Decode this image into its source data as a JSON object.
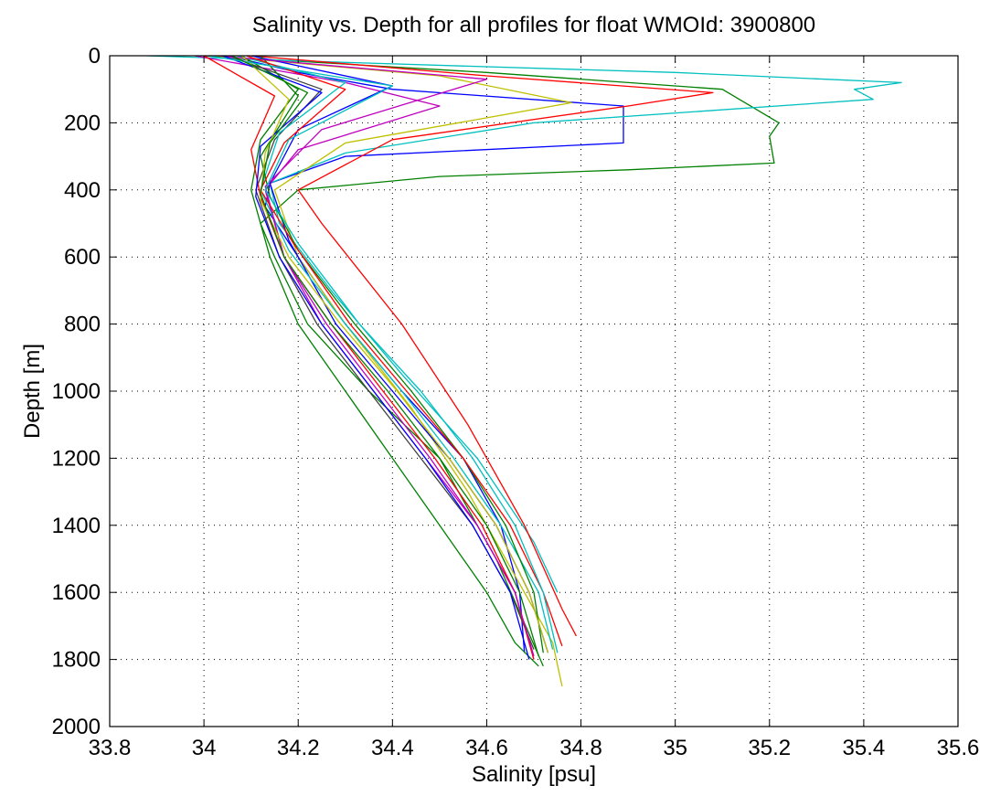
{
  "chart_data": {
    "type": "line",
    "title": "Salinity vs. Depth for all profiles for float WMOId: 3900800",
    "xlabel": "Salinity [psu]",
    "ylabel": "Depth [m]",
    "xlim": [
      33.8,
      35.6
    ],
    "ylim": [
      0,
      2000
    ],
    "y_reversed": true,
    "grid": true,
    "xticks": [
      33.8,
      34,
      34.2,
      34.4,
      34.6,
      34.8,
      35,
      35.2,
      35.4,
      35.6
    ],
    "xtick_labels": [
      "33.8",
      "34",
      "34.2",
      "34.4",
      "34.6",
      "34.8",
      "35",
      "35.2",
      "35.4",
      "35.6"
    ],
    "yticks": [
      0,
      200,
      400,
      600,
      800,
      1000,
      1200,
      1400,
      1600,
      1800,
      2000
    ],
    "ytick_labels": [
      "0",
      "200",
      "400",
      "600",
      "800",
      "1000",
      "1200",
      "1400",
      "1600",
      "1800",
      "2000"
    ],
    "series_colors": [
      "#0000ff",
      "#008000",
      "#ff0000",
      "#00bfbf",
      "#bf00bf",
      "#bfbf00",
      "#404040"
    ],
    "series": [
      {
        "color": "#0000ff",
        "x": [
          34.05,
          34.2,
          34.4,
          34.89,
          34.89,
          34.3,
          34.14,
          34.13,
          34.2,
          34.3,
          34.42,
          34.55,
          34.63,
          34.67,
          34.68
        ],
        "y": [
          0,
          50,
          100,
          150,
          260,
          300,
          380,
          450,
          600,
          800,
          1000,
          1200,
          1400,
          1600,
          1780
        ]
      },
      {
        "color": "#008000",
        "x": [
          34.0,
          34.6,
          35.1,
          35.22,
          35.2,
          35.21,
          34.9,
          34.5,
          34.2,
          34.12,
          34.15,
          34.22,
          34.35,
          34.5,
          34.62,
          34.72
        ],
        "y": [
          0,
          50,
          100,
          200,
          240,
          320,
          340,
          360,
          400,
          500,
          600,
          800,
          1000,
          1200,
          1500,
          1820
        ]
      },
      {
        "color": "#00bfbf",
        "x": [
          33.88,
          34.3,
          35.0,
          35.48,
          35.38,
          35.42,
          34.7,
          34.3,
          34.14,
          34.16,
          34.27,
          34.42,
          34.58,
          34.7,
          34.75
        ],
        "y": [
          0,
          20,
          50,
          80,
          100,
          130,
          200,
          290,
          380,
          500,
          700,
          950,
          1200,
          1450,
          1600
        ]
      },
      {
        "color": "#ff0000",
        "x": [
          34.1,
          34.6,
          35.08,
          34.9,
          34.4,
          34.2,
          34.25,
          34.42,
          34.56,
          34.68,
          34.76,
          34.79
        ],
        "y": [
          0,
          60,
          110,
          150,
          250,
          400,
          500,
          800,
          1100,
          1400,
          1650,
          1730
        ]
      },
      {
        "color": "#008000",
        "x": [
          34.08,
          34.2,
          34.12,
          34.1,
          34.14,
          34.2,
          34.3,
          34.4,
          34.5,
          34.6,
          34.66,
          34.71
        ],
        "y": [
          0,
          100,
          250,
          400,
          600,
          800,
          1000,
          1200,
          1400,
          1600,
          1750,
          1820
        ]
      },
      {
        "color": "#bf00bf",
        "x": [
          33.98,
          34.3,
          34.5,
          34.2,
          34.13,
          34.17,
          34.25,
          34.36,
          34.47,
          34.58,
          34.66,
          34.7
        ],
        "y": [
          0,
          80,
          150,
          280,
          400,
          600,
          800,
          1000,
          1200,
          1400,
          1600,
          1800
        ]
      },
      {
        "color": "#bfbf00",
        "x": [
          34.02,
          34.5,
          34.78,
          34.3,
          34.15,
          34.2,
          34.3,
          34.44,
          34.56,
          34.66,
          34.74,
          34.76
        ],
        "y": [
          0,
          60,
          140,
          260,
          400,
          600,
          800,
          1050,
          1300,
          1550,
          1750,
          1880
        ]
      },
      {
        "color": "#404040",
        "x": [
          34.05,
          34.25,
          34.15,
          34.11,
          34.16,
          34.24,
          34.35,
          34.46,
          34.57,
          34.65,
          34.7
        ],
        "y": [
          0,
          100,
          250,
          400,
          600,
          800,
          1000,
          1200,
          1400,
          1600,
          1770
        ]
      },
      {
        "color": "#0000ff",
        "x": [
          34.1,
          34.4,
          34.2,
          34.14,
          34.18,
          34.28,
          34.4,
          34.52,
          34.62,
          34.69,
          34.73
        ],
        "y": [
          0,
          90,
          220,
          380,
          550,
          800,
          1000,
          1200,
          1400,
          1600,
          1780
        ]
      },
      {
        "color": "#ff0000",
        "x": [
          34.0,
          34.15,
          34.1,
          34.12,
          34.17,
          34.27,
          34.38,
          34.49,
          34.59,
          34.66,
          34.7
        ],
        "y": [
          0,
          120,
          280,
          420,
          600,
          800,
          1000,
          1200,
          1400,
          1600,
          1800
        ]
      },
      {
        "color": "#00bfbf",
        "x": [
          34.07,
          34.3,
          34.16,
          34.12,
          34.18,
          34.3,
          34.42,
          34.53,
          34.63,
          34.71,
          34.74
        ],
        "y": [
          0,
          80,
          230,
          400,
          580,
          800,
          1000,
          1200,
          1400,
          1600,
          1770
        ]
      },
      {
        "color": "#008000",
        "x": [
          34.12,
          34.2,
          34.12,
          34.14,
          34.2,
          34.32,
          34.44,
          34.55,
          34.64,
          34.7,
          34.72
        ],
        "y": [
          0,
          120,
          300,
          420,
          580,
          800,
          1000,
          1200,
          1400,
          1600,
          1780
        ]
      },
      {
        "color": "#bf00bf",
        "x": [
          34.03,
          34.6,
          34.25,
          34.13,
          34.17,
          34.26,
          34.37,
          34.48,
          34.58,
          34.66,
          34.7
        ],
        "y": [
          0,
          70,
          220,
          390,
          600,
          800,
          1000,
          1200,
          1400,
          1600,
          1790
        ]
      },
      {
        "color": "#ff0000",
        "x": [
          34.09,
          34.3,
          34.17,
          34.12,
          34.19,
          34.31,
          34.43,
          34.55,
          34.65,
          34.72,
          34.76
        ],
        "y": [
          0,
          100,
          260,
          400,
          560,
          800,
          1000,
          1200,
          1400,
          1600,
          1760
        ]
      },
      {
        "color": "#0000ff",
        "x": [
          34.04,
          34.25,
          34.12,
          34.11,
          34.16,
          34.25,
          34.36,
          34.47,
          34.57,
          34.65,
          34.69
        ],
        "y": [
          0,
          110,
          270,
          420,
          600,
          800,
          1000,
          1200,
          1400,
          1600,
          1800
        ]
      },
      {
        "color": "#bfbf00",
        "x": [
          34.08,
          34.18,
          34.13,
          34.12,
          34.18,
          34.29,
          34.41,
          34.52,
          34.62,
          34.69,
          34.73
        ],
        "y": [
          0,
          130,
          290,
          430,
          600,
          800,
          1000,
          1200,
          1400,
          1600,
          1780
        ]
      },
      {
        "color": "#00bfbf",
        "x": [
          34.01,
          34.4,
          34.18,
          34.13,
          34.2,
          34.33,
          34.46,
          34.57,
          34.66,
          34.72,
          34.75
        ],
        "y": [
          0,
          90,
          250,
          400,
          560,
          800,
          1000,
          1200,
          1400,
          1600,
          1780
        ]
      },
      {
        "color": "#008000",
        "x": [
          34.06,
          34.22,
          34.14,
          34.12,
          34.17,
          34.27,
          34.39,
          34.5,
          34.6,
          34.67,
          34.71
        ],
        "y": [
          0,
          110,
          260,
          410,
          600,
          800,
          1000,
          1200,
          1400,
          1600,
          1790
        ]
      }
    ]
  }
}
